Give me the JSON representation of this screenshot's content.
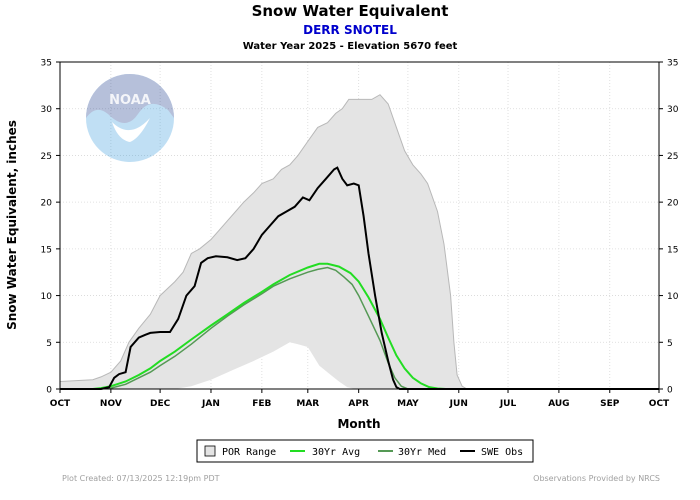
{
  "chart_data": {
    "type": "line",
    "title": "Snow Water Equivalent",
    "subtitle": "DERR SNOTEL",
    "subtitle2": "Water Year 2025 -  Elevation 5670 feet",
    "xlabel": "Month",
    "ylabel": "Snow Water Equivalent, inches",
    "ylim": [
      0,
      35
    ],
    "yticks": [
      0,
      5,
      10,
      15,
      20,
      25,
      30,
      35
    ],
    "x_unit": "days since Oct 1",
    "xlim": [
      0,
      365
    ],
    "month_ticks": [
      {
        "label": "OCT",
        "day": 0
      },
      {
        "label": "NOV",
        "day": 31
      },
      {
        "label": "DEC",
        "day": 61
      },
      {
        "label": "JAN",
        "day": 92
      },
      {
        "label": "FEB",
        "day": 123
      },
      {
        "label": "MAR",
        "day": 151
      },
      {
        "label": "APR",
        "day": 182
      },
      {
        "label": "MAY",
        "day": 212
      },
      {
        "label": "JUN",
        "day": 243
      },
      {
        "label": "JUL",
        "day": 273
      },
      {
        "label": "AUG",
        "day": 304
      },
      {
        "label": "SEP",
        "day": 335
      },
      {
        "label": "OCT",
        "day": 365
      }
    ],
    "grid": true,
    "legend_position": "bottom-center",
    "colors": {
      "por_fill": "#e4e4e4",
      "por_edge": "#b8b8b8",
      "avg": "#22dd22",
      "med": "#559955",
      "obs": "#000000"
    },
    "por_range": {
      "name": "POR Range",
      "upper": [
        [
          0,
          0.8
        ],
        [
          10,
          0.9
        ],
        [
          20,
          1.0
        ],
        [
          25,
          1.3
        ],
        [
          31,
          1.8
        ],
        [
          37,
          3.0
        ],
        [
          42,
          5.0
        ],
        [
          48,
          6.5
        ],
        [
          55,
          8.0
        ],
        [
          61,
          10.0
        ],
        [
          70,
          11.5
        ],
        [
          75,
          12.5
        ],
        [
          80,
          14.5
        ],
        [
          85,
          15.0
        ],
        [
          92,
          16.0
        ],
        [
          97,
          17.0
        ],
        [
          102,
          18.0
        ],
        [
          107,
          19.0
        ],
        [
          112,
          20.0
        ],
        [
          118,
          21.0
        ],
        [
          123,
          22.0
        ],
        [
          130,
          22.5
        ],
        [
          135,
          23.5
        ],
        [
          140,
          24.0
        ],
        [
          145,
          25.0
        ],
        [
          151,
          26.5
        ],
        [
          157,
          28.0
        ],
        [
          163,
          28.5
        ],
        [
          168,
          29.5
        ],
        [
          172,
          30.0
        ],
        [
          176,
          31.0
        ],
        [
          182,
          31.0
        ],
        [
          190,
          31.0
        ],
        [
          195,
          31.5
        ],
        [
          200,
          30.5
        ],
        [
          205,
          28.0
        ],
        [
          210,
          25.5
        ],
        [
          215,
          24.0
        ],
        [
          220,
          23.0
        ],
        [
          224,
          22.0
        ],
        [
          230,
          19.0
        ],
        [
          234,
          15.5
        ],
        [
          238,
          10.0
        ],
        [
          240,
          5.0
        ],
        [
          242,
          1.5
        ],
        [
          245,
          0.3
        ],
        [
          248,
          0
        ]
      ],
      "lower": [
        [
          0,
          0
        ],
        [
          70,
          0
        ],
        [
          80,
          0.3
        ],
        [
          92,
          1.0
        ],
        [
          105,
          2.0
        ],
        [
          118,
          3.0
        ],
        [
          130,
          4.0
        ],
        [
          140,
          5.0
        ],
        [
          145,
          4.8
        ],
        [
          151,
          4.5
        ],
        [
          158,
          2.5
        ],
        [
          165,
          1.5
        ],
        [
          170,
          0.8
        ],
        [
          175,
          0.2
        ],
        [
          180,
          0
        ],
        [
          248,
          0
        ]
      ]
    },
    "series": [
      {
        "name": "30Yr Avg",
        "points": [
          [
            0,
            0
          ],
          [
            10,
            0
          ],
          [
            20,
            0
          ],
          [
            25,
            0.1
          ],
          [
            31,
            0.3
          ],
          [
            40,
            0.8
          ],
          [
            48,
            1.5
          ],
          [
            55,
            2.2
          ],
          [
            61,
            3.0
          ],
          [
            70,
            4.0
          ],
          [
            80,
            5.3
          ],
          [
            92,
            6.8
          ],
          [
            102,
            8.0
          ],
          [
            112,
            9.2
          ],
          [
            123,
            10.4
          ],
          [
            130,
            11.2
          ],
          [
            140,
            12.2
          ],
          [
            151,
            13.0
          ],
          [
            158,
            13.4
          ],
          [
            163,
            13.4
          ],
          [
            170,
            13.1
          ],
          [
            177,
            12.4
          ],
          [
            182,
            11.5
          ],
          [
            188,
            9.8
          ],
          [
            195,
            7.5
          ],
          [
            200,
            5.5
          ],
          [
            205,
            3.6
          ],
          [
            210,
            2.2
          ],
          [
            215,
            1.2
          ],
          [
            220,
            0.6
          ],
          [
            225,
            0.2
          ],
          [
            230,
            0.05
          ],
          [
            235,
            0
          ]
        ]
      },
      {
        "name": "30Yr Med",
        "points": [
          [
            0,
            0
          ],
          [
            25,
            0
          ],
          [
            31,
            0.1
          ],
          [
            40,
            0.5
          ],
          [
            48,
            1.2
          ],
          [
            55,
            1.8
          ],
          [
            61,
            2.5
          ],
          [
            70,
            3.5
          ],
          [
            80,
            4.8
          ],
          [
            92,
            6.5
          ],
          [
            102,
            7.8
          ],
          [
            112,
            9.0
          ],
          [
            123,
            10.2
          ],
          [
            130,
            11.0
          ],
          [
            140,
            11.8
          ],
          [
            151,
            12.5
          ],
          [
            157,
            12.8
          ],
          [
            163,
            13.0
          ],
          [
            168,
            12.7
          ],
          [
            173,
            12.0
          ],
          [
            178,
            11.2
          ],
          [
            182,
            10.0
          ],
          [
            188,
            7.8
          ],
          [
            195,
            5.2
          ],
          [
            200,
            2.8
          ],
          [
            204,
            1.2
          ],
          [
            208,
            0.3
          ],
          [
            212,
            0
          ]
        ]
      },
      {
        "name": "SWE Obs",
        "points": [
          [
            0,
            0
          ],
          [
            25,
            0
          ],
          [
            30,
            0.2
          ],
          [
            33,
            1.2
          ],
          [
            36,
            1.6
          ],
          [
            40,
            1.8
          ],
          [
            43,
            4.5
          ],
          [
            48,
            5.5
          ],
          [
            52,
            5.8
          ],
          [
            55,
            6.0
          ],
          [
            61,
            6.1
          ],
          [
            67,
            6.1
          ],
          [
            72,
            7.5
          ],
          [
            77,
            10.0
          ],
          [
            82,
            11.0
          ],
          [
            86,
            13.5
          ],
          [
            90,
            14.0
          ],
          [
            95,
            14.2
          ],
          [
            102,
            14.1
          ],
          [
            108,
            13.8
          ],
          [
            113,
            14.0
          ],
          [
            118,
            15.0
          ],
          [
            123,
            16.5
          ],
          [
            128,
            17.5
          ],
          [
            133,
            18.5
          ],
          [
            138,
            19.0
          ],
          [
            143,
            19.5
          ],
          [
            148,
            20.5
          ],
          [
            152,
            20.2
          ],
          [
            157,
            21.5
          ],
          [
            162,
            22.5
          ],
          [
            167,
            23.5
          ],
          [
            169,
            23.7
          ],
          [
            172,
            22.5
          ],
          [
            175,
            21.8
          ],
          [
            179,
            22.0
          ],
          [
            182,
            21.8
          ],
          [
            185,
            18.5
          ],
          [
            188,
            14.5
          ],
          [
            192,
            10.0
          ],
          [
            196,
            6.0
          ],
          [
            200,
            3.0
          ],
          [
            203,
            1.0
          ],
          [
            205,
            0.2
          ],
          [
            207,
            0
          ],
          [
            365,
            0
          ]
        ]
      }
    ],
    "legend": [
      "POR Range",
      "30Yr Avg",
      "30Yr Med",
      "SWE Obs"
    ]
  },
  "footer": {
    "left": "Plot Created: 07/13/2025 12:19pm PDT",
    "right": "Observations Provided by NRCS"
  },
  "logo_text": "NOAA"
}
